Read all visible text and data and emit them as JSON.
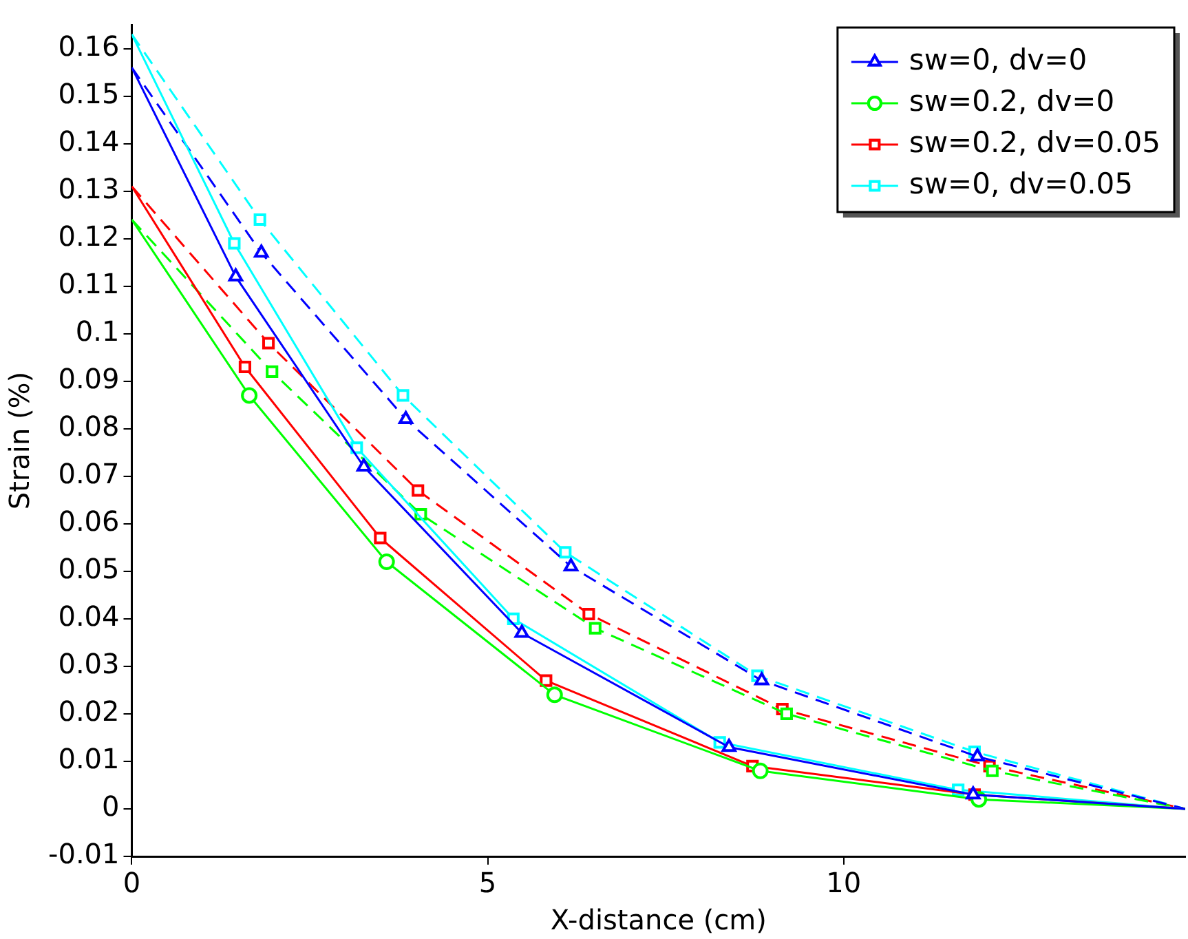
{
  "chart_data": {
    "type": "line",
    "xlabel": "X-distance (cm)",
    "ylabel": "Strain (%)",
    "xlim": [
      0,
      14.8
    ],
    "xticks": [
      0,
      5,
      10
    ],
    "ylim": [
      -0.01,
      0.165
    ],
    "yticks": [
      -0.01,
      0,
      0.01,
      0.02,
      0.03,
      0.04,
      0.05,
      0.06,
      0.07,
      0.08,
      0.09,
      0.1,
      0.11,
      0.12,
      0.13,
      0.14,
      0.15,
      0.16
    ],
    "grid": false,
    "legend": "top right",
    "series": [
      {
        "name": "sw=0, dv=0",
        "color": "#0000ff",
        "marker": "triangle",
        "line_style": "solid",
        "x": [
          0,
          1.46,
          3.26,
          5.48,
          8.39,
          11.82,
          14.8
        ],
        "values": [
          0.156,
          0.112,
          0.072,
          0.037,
          0.013,
          0.003,
          0.0
        ]
      },
      {
        "name": "sw=0.2, dv=0",
        "color": "#00ff00",
        "marker": "circle",
        "line_style": "solid",
        "x": [
          0,
          1.65,
          3.58,
          5.94,
          8.83,
          11.9,
          14.8
        ],
        "values": [
          0.124,
          0.087,
          0.052,
          0.024,
          0.008,
          0.002,
          0.0
        ]
      },
      {
        "name": "sw=0.2, dv=0.05",
        "color": "#ff0000",
        "marker": "square",
        "line_style": "solid",
        "x": [
          0,
          1.59,
          3.49,
          5.82,
          8.72,
          11.84,
          14.8
        ],
        "values": [
          0.131,
          0.093,
          0.057,
          0.027,
          0.009,
          0.003,
          0.0
        ]
      },
      {
        "name": "sw=0, dv=0.05",
        "color": "#00ffff",
        "marker": "square",
        "line_style": "solid",
        "x": [
          0,
          1.44,
          3.16,
          5.36,
          8.26,
          11.61,
          14.8
        ],
        "values": [
          0.163,
          0.119,
          0.076,
          0.04,
          0.014,
          0.004,
          0.0
        ]
      },
      {
        "color": "#0000ff",
        "marker": "triangle",
        "line_style": "dashed",
        "x": [
          0,
          1.82,
          3.85,
          6.17,
          8.85,
          11.88,
          14.8
        ],
        "values": [
          0.156,
          0.117,
          0.082,
          0.051,
          0.027,
          0.011,
          0.0
        ]
      },
      {
        "color": "#00ff00",
        "marker": "square",
        "line_style": "dashed",
        "x": [
          0,
          1.97,
          4.06,
          6.51,
          9.2,
          12.09,
          14.8
        ],
        "values": [
          0.124,
          0.092,
          0.062,
          0.038,
          0.02,
          0.008,
          0.0
        ]
      },
      {
        "color": "#ff0000",
        "marker": "square",
        "line_style": "dashed",
        "x": [
          0,
          1.92,
          4.02,
          6.42,
          9.14,
          12.05,
          14.8
        ],
        "values": [
          0.131,
          0.098,
          0.067,
          0.041,
          0.021,
          0.009,
          0.0
        ]
      },
      {
        "color": "#00ffff",
        "marker": "square",
        "line_style": "dashed",
        "x": [
          0,
          1.8,
          3.81,
          6.09,
          8.79,
          11.84,
          14.8
        ],
        "values": [
          0.163,
          0.124,
          0.087,
          0.054,
          0.028,
          0.012,
          0.0
        ]
      }
    ]
  }
}
